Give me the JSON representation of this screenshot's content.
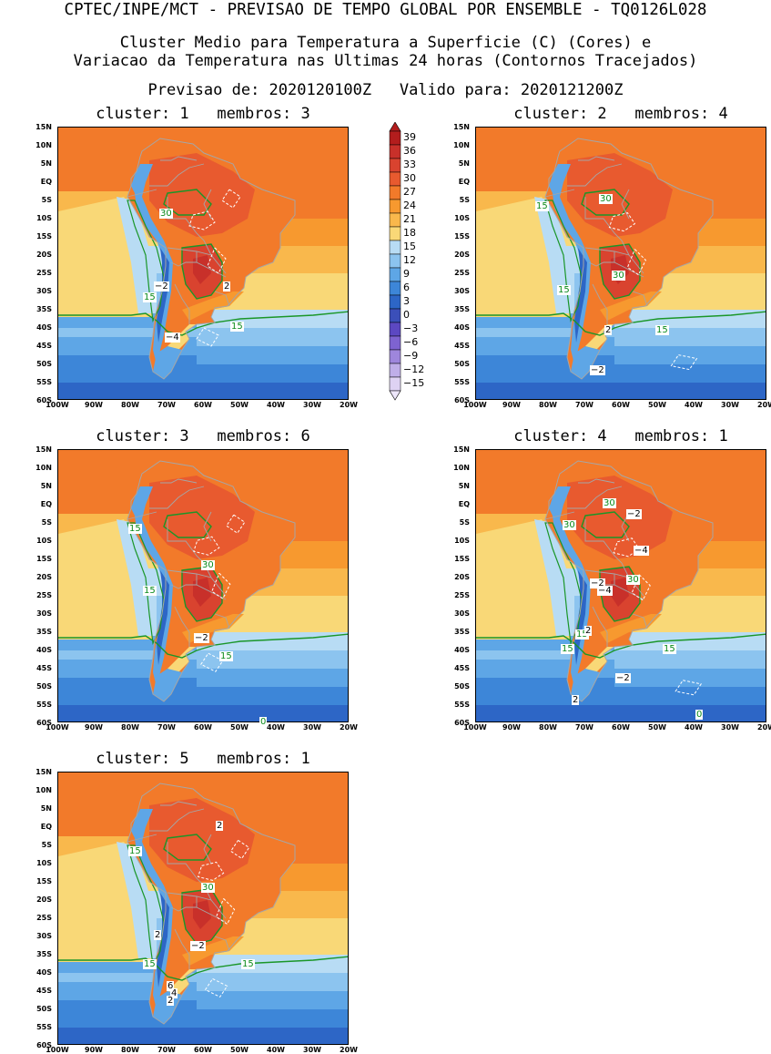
{
  "header": {
    "line1": "CPTEC/INPE/MCT - PREVISAO DE TEMPO GLOBAL POR ENSEMBLE - TQ0126L028",
    "line2": "Cluster Medio para Temperatura a Superficie (C) (Cores) e",
    "line3": "Variacao da Temperatura nas Ultimas 24 horas (Contornos Tracejados)",
    "line4": "Previsao de: 2020120100Z   Valido para: 2020121200Z"
  },
  "axes": {
    "lat_labels": [
      "15N",
      "10N",
      "5N",
      "EQ",
      "5S",
      "10S",
      "15S",
      "20S",
      "25S",
      "30S",
      "35S",
      "40S",
      "45S",
      "50S",
      "55S",
      "60S"
    ],
    "lon_labels": [
      "100W",
      "90W",
      "80W",
      "70W",
      "60W",
      "50W",
      "40W",
      "30W",
      "20W"
    ],
    "lat_range": [
      -60,
      15
    ],
    "lon_range": [
      -100,
      -20
    ]
  },
  "colorbar": {
    "labels": [
      "39",
      "36",
      "33",
      "30",
      "27",
      "24",
      "21",
      "18",
      "15",
      "12",
      "9",
      "6",
      "3",
      "0",
      "−3",
      "−6",
      "−9",
      "−12",
      "−15"
    ],
    "colors": [
      "#b31d1d",
      "#c8302a",
      "#d9432f",
      "#e85a2f",
      "#f27a2a",
      "#f7992f",
      "#f9b84c",
      "#f9d877",
      "#b8dcf4",
      "#8cc4ef",
      "#5ea6e6",
      "#3d86d8",
      "#2d66c6",
      "#3b4fb9",
      "#5c48c2",
      "#7e63d0",
      "#9e86dc",
      "#bfaee8",
      "#ded2f3"
    ],
    "top_arrow_color": "#b31d1d",
    "bottom_arrow_color": "#ede6fa"
  },
  "contour_colors": {
    "temperature_contour": "#1a9628",
    "variation_contour": "#ffffff",
    "country_border": "#a6a6a6"
  },
  "panels": [
    {
      "title": "cluster: 1   membros: 3",
      "labels": [
        {
          "text": "30",
          "color": "green",
          "lon": -70.5,
          "lat": -9
        },
        {
          "text": "−2",
          "color": "black",
          "lon": -72,
          "lat": -29
        },
        {
          "text": "2",
          "color": "black",
          "lon": -53,
          "lat": -29
        },
        {
          "text": "15",
          "color": "green",
          "lon": -75,
          "lat": -32
        },
        {
          "text": "15",
          "color": "green",
          "lon": -51,
          "lat": -40
        },
        {
          "text": "−4",
          "color": "black",
          "lon": -69,
          "lat": -43
        }
      ]
    },
    {
      "title": "cluster: 2   membros: 4",
      "labels": [
        {
          "text": "30",
          "color": "green",
          "lon": -64.5,
          "lat": -5
        },
        {
          "text": "15",
          "color": "green",
          "lon": -82,
          "lat": -7
        },
        {
          "text": "30",
          "color": "green",
          "lon": -61,
          "lat": -26
        },
        {
          "text": "15",
          "color": "green",
          "lon": -76,
          "lat": -30
        },
        {
          "text": "2",
          "color": "black",
          "lon": -63,
          "lat": -41
        },
        {
          "text": "15",
          "color": "green",
          "lon": -49,
          "lat": -41
        },
        {
          "text": "−2",
          "color": "black",
          "lon": -67,
          "lat": -52
        }
      ]
    },
    {
      "title": "cluster: 3   membros: 6",
      "labels": [
        {
          "text": "15",
          "color": "green",
          "lon": -79,
          "lat": -7
        },
        {
          "text": "30",
          "color": "green",
          "lon": -59,
          "lat": -17
        },
        {
          "text": "15",
          "color": "green",
          "lon": -75,
          "lat": -24
        },
        {
          "text": "−2",
          "color": "black",
          "lon": -61,
          "lat": -37
        },
        {
          "text": "15",
          "color": "green",
          "lon": -54,
          "lat": -42
        },
        {
          "text": "0",
          "color": "green",
          "lon": -43,
          "lat": -60
        }
      ]
    },
    {
      "title": "cluster: 4   membros: 1",
      "labels": [
        {
          "text": "30",
          "color": "green",
          "lon": -63.5,
          "lat": 0
        },
        {
          "text": "−2",
          "color": "black",
          "lon": -57,
          "lat": -3
        },
        {
          "text": "30",
          "color": "green",
          "lon": -74.5,
          "lat": -6
        },
        {
          "text": "−4",
          "color": "black",
          "lon": -55,
          "lat": -13
        },
        {
          "text": "−2",
          "color": "black",
          "lon": -67,
          "lat": -22
        },
        {
          "text": "30",
          "color": "green",
          "lon": -57,
          "lat": -21
        },
        {
          "text": "−4",
          "color": "black",
          "lon": -65,
          "lat": -24
        },
        {
          "text": "15",
          "color": "green",
          "lon": -71,
          "lat": -36
        },
        {
          "text": "2",
          "color": "black",
          "lon": -68.5,
          "lat": -35
        },
        {
          "text": "15",
          "color": "green",
          "lon": -75,
          "lat": -40
        },
        {
          "text": "15",
          "color": "green",
          "lon": -47,
          "lat": -40
        },
        {
          "text": "−2",
          "color": "black",
          "lon": -60,
          "lat": -48
        },
        {
          "text": "2",
          "color": "black",
          "lon": -72,
          "lat": -54
        },
        {
          "text": "0",
          "color": "green",
          "lon": -38,
          "lat": -58
        }
      ]
    },
    {
      "title": "cluster: 5   membros: 1",
      "labels": [
        {
          "text": "2",
          "color": "black",
          "lon": -55,
          "lat": 0
        },
        {
          "text": "15",
          "color": "green",
          "lon": -79,
          "lat": -7
        },
        {
          "text": "30",
          "color": "green",
          "lon": -59,
          "lat": -17
        },
        {
          "text": "2",
          "color": "black",
          "lon": -72,
          "lat": -30
        },
        {
          "text": "−2",
          "color": "black",
          "lon": -62,
          "lat": -33
        },
        {
          "text": "15",
          "color": "green",
          "lon": -75,
          "lat": -38
        },
        {
          "text": "15",
          "color": "green",
          "lon": -48,
          "lat": -38
        },
        {
          "text": "6",
          "color": "black",
          "lon": -68.5,
          "lat": -44
        },
        {
          "text": "4",
          "color": "black",
          "lon": -67.5,
          "lat": -46
        },
        {
          "text": "2",
          "color": "black",
          "lon": -68.5,
          "lat": -48
        }
      ]
    }
  ]
}
